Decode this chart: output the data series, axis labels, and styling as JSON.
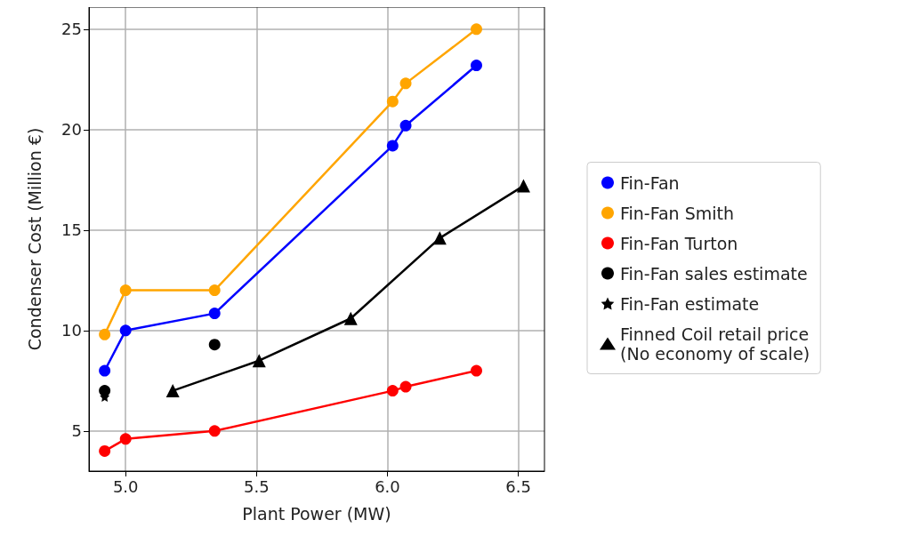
{
  "chart_data": {
    "type": "line",
    "xlabel": "Plant Power (MW)",
    "ylabel": "Condenser Cost (Million €)",
    "xlim": [
      4.86,
      6.6
    ],
    "xticks": [
      {
        "value": 5,
        "label": "5.0"
      },
      5.5,
      {
        "value": 6,
        "label": "6.0"
      },
      6.5
    ],
    "ylim": [
      3,
      26.1
    ],
    "yticks": [
      5,
      10,
      15,
      20,
      25
    ],
    "grid": true,
    "legend": "right",
    "series": [
      {
        "name": "Fin-Fan",
        "color": "#0000ff",
        "marker": "circle",
        "x": [
          4.92,
          5.0,
          5.34,
          6.02,
          6.07,
          6.34
        ],
        "values": [
          8.0,
          10.0,
          10.85,
          19.2,
          20.2,
          23.2
        ]
      },
      {
        "name": "Fin-Fan Smith",
        "color": "#ffa500",
        "marker": "circle",
        "x": [
          4.92,
          5.0,
          5.34,
          6.02,
          6.07,
          6.34
        ],
        "values": [
          9.8,
          12.0,
          12.0,
          21.4,
          22.3,
          25.0
        ]
      },
      {
        "name": "Fin-Fan Turton",
        "color": "#ff0000",
        "marker": "circle",
        "x": [
          4.92,
          5.0,
          5.34,
          6.02,
          6.07,
          6.34
        ],
        "values": [
          4.0,
          4.6,
          5.0,
          7.0,
          7.2,
          8.0
        ]
      },
      {
        "name": "Fin-Fan sales estimate",
        "type": "scatter",
        "color": "#000000",
        "marker": "circle",
        "x": [
          4.92,
          5.34
        ],
        "values": [
          7.0,
          9.3
        ]
      },
      {
        "name": "Fin-Fan estimate",
        "type": "scatter",
        "color": "#000000",
        "marker": "star",
        "x": [
          4.92
        ],
        "values": [
          6.7
        ]
      },
      {
        "name": "Finned Coil retail price\n(No economy of scale)",
        "color": "#000000",
        "marker": "triangle",
        "x": [
          5.18,
          5.51,
          5.86,
          6.2,
          6.52
        ],
        "values": [
          7.0,
          8.5,
          10.6,
          14.6,
          17.2
        ]
      }
    ]
  }
}
